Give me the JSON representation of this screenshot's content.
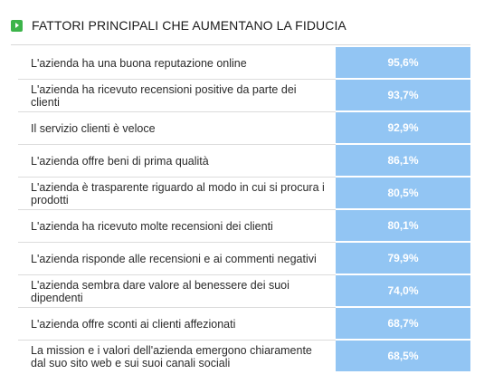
{
  "header": {
    "title": "FATTORI PRINCIPALI CHE AUMENTANO LA FIDUCIA",
    "icon": "play-icon"
  },
  "colors": {
    "accent": "#3cb44a",
    "bar": "#92c5f3",
    "value_text": "#ffffff"
  },
  "chart_data": {
    "type": "table",
    "title": "FATTORI PRINCIPALI CHE AUMENTANO LA FIDUCIA",
    "categories": [
      "L'azienda ha una buona reputazione online",
      "L'azienda ha ricevuto recensioni positive da parte dei clienti",
      "Il servizio clienti è veloce",
      "L'azienda offre beni di prima qualità",
      "L'azienda è trasparente riguardo al modo in cui si procura i prodotti",
      "L'azienda ha ricevuto molte recensioni dei clienti",
      "L'azienda risponde alle recensioni e ai commenti negativi",
      "L'azienda sembra dare valore al benessere dei suoi dipendenti",
      "L'azienda offre sconti ai clienti affezionati",
      "La mission e i valori dell'azienda emergono chiaramente dal suo sito web e sui suoi canali sociali"
    ],
    "values": [
      95.6,
      93.7,
      92.9,
      86.1,
      80.5,
      80.1,
      79.9,
      74.0,
      68.7,
      68.5
    ],
    "value_labels": [
      "95,6%",
      "93,7%",
      "92,9%",
      "86,1%",
      "80,5%",
      "80,1%",
      "79,9%",
      "74,0%",
      "68,7%",
      "68,5%"
    ]
  }
}
